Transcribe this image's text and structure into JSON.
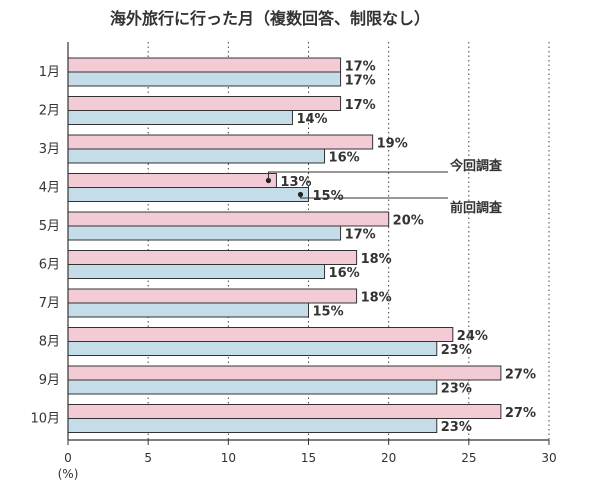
{
  "chart_data": {
    "type": "bar",
    "orientation": "horizontal",
    "title": "海外旅行に行った月（複数回答、制限なし）",
    "categories": [
      "1月",
      "2月",
      "3月",
      "4月",
      "5月",
      "6月",
      "7月",
      "8月",
      "9月",
      "10月"
    ],
    "series": [
      {
        "name": "今回調査",
        "color": "#f2cbd4",
        "values": [
          17,
          17,
          19,
          13,
          20,
          18,
          18,
          24,
          27,
          27
        ]
      },
      {
        "name": "前回調査",
        "color": "#c5dde8",
        "values": [
          17,
          14,
          16,
          15,
          17,
          16,
          15,
          23,
          23,
          23
        ]
      }
    ],
    "value_suffix": "%",
    "xlim": [
      0,
      30
    ],
    "xticks": [
      "0",
      "5",
      "10",
      "15",
      "20",
      "25",
      "30"
    ],
    "xunit": "(%)",
    "gridlines": "dotted vertical",
    "legend": "callouts on 4月 bars",
    "bar_stroke": "#333333"
  }
}
